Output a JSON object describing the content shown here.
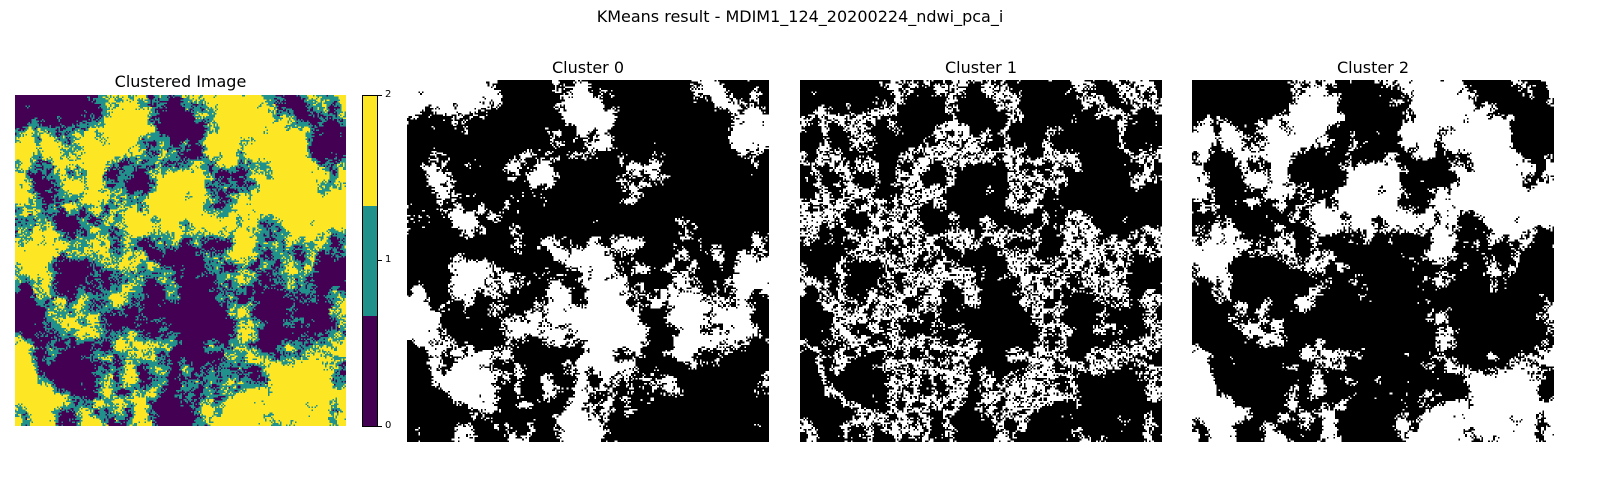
{
  "suptitle": "KMeans result - MDIM1_124_20200224_ndwi_pca_i",
  "clustered_panel": {
    "title": "Clustered Image",
    "colorbar": {
      "colors": [
        "#440154",
        "#21918c",
        "#fde725"
      ],
      "tick_labels": [
        "0",
        "1",
        "2"
      ]
    }
  },
  "cluster_panels": [
    {
      "title": "Cluster 0"
    },
    {
      "title": "Cluster 1"
    },
    {
      "title": "Cluster 2"
    }
  ],
  "mask_colors": {
    "on": "#ffffff",
    "off": "#000000"
  }
}
